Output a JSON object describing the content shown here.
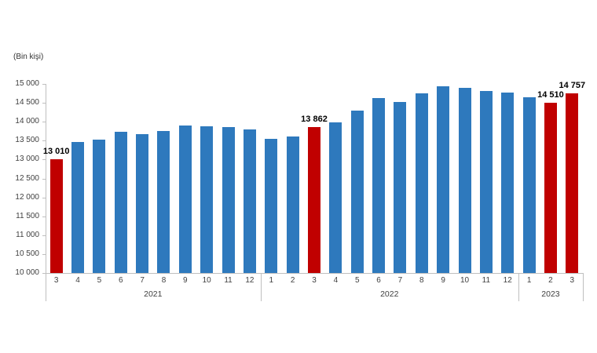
{
  "unit_label": "(Bin kişi)",
  "colors": {
    "bar_blue": "#2e79bd",
    "bar_red": "#c00000",
    "axis_line": "#bfbfbf",
    "tick_text": "#404040",
    "data_label_text": "#000000"
  },
  "chart_data": {
    "type": "bar",
    "title": "",
    "unit_label": "(Bin kişi)",
    "ylabel": "(Bin kişi)",
    "xlabel": "",
    "ylim": [
      10000,
      15000
    ],
    "ytick_step": 500,
    "grid": false,
    "legend": false,
    "ytick_labels": [
      "15 000",
      "14 500",
      "14 000",
      "13 500",
      "13 000",
      "12 500",
      "12 000",
      "11 500",
      "11 000",
      "10 500",
      "10 000"
    ],
    "groups": [
      {
        "year": "2021",
        "count": 10
      },
      {
        "year": "2022",
        "count": 12
      },
      {
        "year": "2023",
        "count": 3
      }
    ],
    "bars": [
      {
        "year": "2021",
        "month": "3",
        "value": 13010,
        "color": "red",
        "label": "13 010"
      },
      {
        "year": "2021",
        "month": "4",
        "value": 13470,
        "color": "blue"
      },
      {
        "year": "2021",
        "month": "5",
        "value": 13530,
        "color": "blue"
      },
      {
        "year": "2021",
        "month": "6",
        "value": 13740,
        "color": "blue"
      },
      {
        "year": "2021",
        "month": "7",
        "value": 13680,
        "color": "blue"
      },
      {
        "year": "2021",
        "month": "8",
        "value": 13760,
        "color": "blue"
      },
      {
        "year": "2021",
        "month": "9",
        "value": 13900,
        "color": "blue"
      },
      {
        "year": "2021",
        "month": "10",
        "value": 13880,
        "color": "blue"
      },
      {
        "year": "2021",
        "month": "11",
        "value": 13850,
        "color": "blue"
      },
      {
        "year": "2021",
        "month": "12",
        "value": 13800,
        "color": "blue"
      },
      {
        "year": "2022",
        "month": "1",
        "value": 13550,
        "color": "blue"
      },
      {
        "year": "2022",
        "month": "2",
        "value": 13620,
        "color": "blue"
      },
      {
        "year": "2022",
        "month": "3",
        "value": 13862,
        "color": "red",
        "label": "13 862"
      },
      {
        "year": "2022",
        "month": "4",
        "value": 13980,
        "color": "blue"
      },
      {
        "year": "2022",
        "month": "5",
        "value": 14290,
        "color": "blue"
      },
      {
        "year": "2022",
        "month": "6",
        "value": 14620,
        "color": "blue"
      },
      {
        "year": "2022",
        "month": "7",
        "value": 14520,
        "color": "blue"
      },
      {
        "year": "2022",
        "month": "8",
        "value": 14760,
        "color": "blue"
      },
      {
        "year": "2022",
        "month": "9",
        "value": 14940,
        "color": "blue"
      },
      {
        "year": "2022",
        "month": "10",
        "value": 14900,
        "color": "blue"
      },
      {
        "year": "2022",
        "month": "11",
        "value": 14820,
        "color": "blue"
      },
      {
        "year": "2022",
        "month": "12",
        "value": 14780,
        "color": "blue"
      },
      {
        "year": "2023",
        "month": "1",
        "value": 14650,
        "color": "blue"
      },
      {
        "year": "2023",
        "month": "2",
        "value": 14510,
        "color": "red",
        "label": "14 510"
      },
      {
        "year": "2023",
        "month": "3",
        "value": 14757,
        "color": "red",
        "label": "14 757"
      }
    ]
  }
}
